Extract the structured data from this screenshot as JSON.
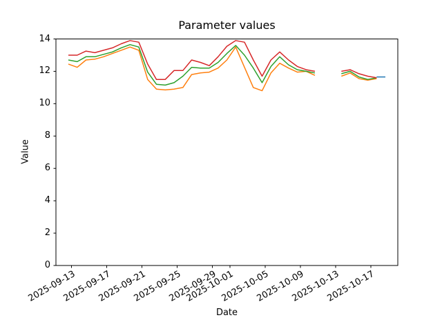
{
  "figure_background": "#ffffff",
  "chart_data": {
    "type": "line",
    "title": "Parameter values",
    "xlabel": "Date",
    "ylabel": "Value",
    "ylim": [
      0,
      14
    ],
    "grid": false,
    "legend": "none",
    "ytick_labels": [
      "0",
      "2",
      "4",
      "6",
      "8",
      "10",
      "12",
      "14"
    ],
    "ytick_values": [
      0,
      2,
      4,
      6,
      8,
      10,
      12,
      14
    ],
    "xtick_labels": [
      "2025-09-13",
      "2025-09-17",
      "2025-09-21",
      "2025-09-25",
      "2025-09-29",
      "2025-10-01",
      "2025-10-05",
      "2025-10-09",
      "2025-10-13",
      "2025-10-17"
    ],
    "xtick_day_indices": [
      0,
      4,
      8,
      12,
      16,
      18,
      22,
      26,
      30,
      34
    ],
    "x": [
      "2025-09-13",
      "2025-09-14",
      "2025-09-15",
      "2025-09-16",
      "2025-09-17",
      "2025-09-18",
      "2025-09-19",
      "2025-09-20",
      "2025-09-21",
      "2025-09-22",
      "2025-09-23",
      "2025-09-24",
      "2025-09-25",
      "2025-09-26",
      "2025-09-27",
      "2025-09-28",
      "2025-09-29",
      "2025-09-30",
      "2025-10-01",
      "2025-10-02",
      "2025-10-03",
      "2025-10-04",
      "2025-10-05",
      "2025-10-06",
      "2025-10-07",
      "2025-10-08",
      "2025-10-09",
      "2025-10-10",
      "2025-10-11",
      "2025-10-12",
      "2025-10-13",
      "2025-10-14",
      "2025-10-15",
      "2025-10-16",
      "2025-10-17",
      "2025-10-18",
      "2025-10-19"
    ],
    "series": [
      {
        "name": "blue",
        "color": "#1f77b4",
        "values": [
          null,
          null,
          null,
          null,
          null,
          null,
          null,
          null,
          null,
          null,
          null,
          null,
          null,
          null,
          null,
          null,
          null,
          null,
          null,
          null,
          null,
          null,
          null,
          null,
          null,
          null,
          null,
          null,
          null,
          null,
          null,
          null,
          null,
          null,
          null,
          11.65,
          11.65
        ]
      },
      {
        "name": "orange",
        "color": "#ff7f0e",
        "values": [
          12.45,
          12.25,
          12.7,
          12.75,
          12.9,
          13.1,
          13.3,
          13.5,
          13.3,
          11.5,
          10.9,
          10.85,
          10.9,
          11.0,
          11.8,
          11.9,
          11.95,
          12.2,
          12.7,
          13.5,
          12.25,
          11.0,
          10.8,
          11.9,
          12.5,
          12.2,
          11.95,
          12.0,
          11.75,
          null,
          null,
          11.7,
          11.9,
          11.55,
          11.45,
          11.55,
          null
        ]
      },
      {
        "name": "green",
        "color": "#2ca02c",
        "values": [
          12.7,
          12.6,
          12.9,
          12.9,
          13.05,
          13.2,
          13.45,
          13.65,
          13.5,
          11.95,
          11.2,
          11.15,
          11.3,
          11.7,
          12.25,
          12.2,
          12.2,
          12.55,
          13.1,
          13.6,
          13.0,
          12.2,
          11.3,
          12.3,
          12.9,
          12.4,
          12.1,
          12.0,
          11.9,
          null,
          null,
          11.85,
          12.0,
          11.65,
          11.5,
          11.6,
          null
        ]
      },
      {
        "name": "red",
        "color": "#d62728",
        "values": [
          13.0,
          13.0,
          13.25,
          13.15,
          13.3,
          13.45,
          13.7,
          13.9,
          13.8,
          12.45,
          11.5,
          11.5,
          12.05,
          12.05,
          12.7,
          12.55,
          12.35,
          12.9,
          13.55,
          13.9,
          13.8,
          12.7,
          11.7,
          12.7,
          13.2,
          12.7,
          12.3,
          12.1,
          12.0,
          null,
          null,
          12.0,
          12.1,
          11.85,
          11.7,
          11.6,
          null
        ]
      }
    ]
  }
}
